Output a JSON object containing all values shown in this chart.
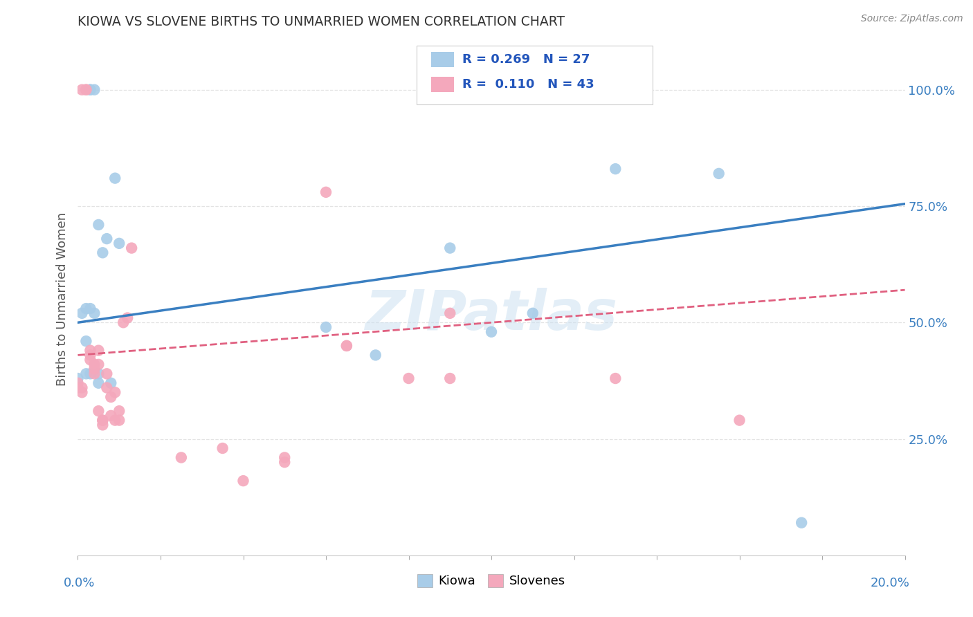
{
  "title": "KIOWA VS SLOVENE BIRTHS TO UNMARRIED WOMEN CORRELATION CHART",
  "source": "Source: ZipAtlas.com",
  "ylabel": "Births to Unmarried Women",
  "ytick_positions": [
    0.25,
    0.5,
    0.75,
    1.0
  ],
  "ytick_labels": [
    "25.0%",
    "50.0%",
    "75.0%",
    "100.0%"
  ],
  "kiowa_R": 0.269,
  "kiowa_N": 27,
  "slovene_R": 0.11,
  "slovene_N": 43,
  "kiowa_color": "#a8cce8",
  "slovene_color": "#f4a8bc",
  "kiowa_line_color": "#3a7fc1",
  "slovene_line_color": "#e06080",
  "background_color": "#ffffff",
  "kiowa_points_x": [
    0.0,
    0.001,
    0.002,
    0.002,
    0.002,
    0.003,
    0.003,
    0.003,
    0.003,
    0.004,
    0.004,
    0.005,
    0.005,
    0.005,
    0.006,
    0.007,
    0.008,
    0.009,
    0.01,
    0.06,
    0.072,
    0.09,
    0.1,
    0.11,
    0.13,
    0.155,
    0.175
  ],
  "kiowa_points_y": [
    0.38,
    0.52,
    0.53,
    0.46,
    0.39,
    0.39,
    0.53,
    1.0,
    1.0,
    1.0,
    0.52,
    0.71,
    0.39,
    0.37,
    0.65,
    0.68,
    0.37,
    0.81,
    0.67,
    0.49,
    0.43,
    0.66,
    0.48,
    0.52,
    0.83,
    0.82,
    0.07
  ],
  "slovene_points_x": [
    0.0,
    0.0,
    0.001,
    0.001,
    0.001,
    0.002,
    0.002,
    0.003,
    0.003,
    0.003,
    0.004,
    0.004,
    0.004,
    0.005,
    0.005,
    0.005,
    0.006,
    0.006,
    0.006,
    0.007,
    0.007,
    0.008,
    0.008,
    0.009,
    0.009,
    0.01,
    0.01,
    0.011,
    0.012,
    0.013,
    0.025,
    0.035,
    0.04,
    0.05,
    0.05,
    0.06,
    0.065,
    0.065,
    0.08,
    0.09,
    0.09,
    0.13,
    0.16
  ],
  "slovene_points_y": [
    0.37,
    0.36,
    0.36,
    0.35,
    1.0,
    1.0,
    1.0,
    0.44,
    0.43,
    0.42,
    0.41,
    0.4,
    0.39,
    0.44,
    0.41,
    0.31,
    0.29,
    0.29,
    0.28,
    0.39,
    0.36,
    0.34,
    0.3,
    0.29,
    0.35,
    0.31,
    0.29,
    0.5,
    0.51,
    0.66,
    0.21,
    0.23,
    0.16,
    0.21,
    0.2,
    0.78,
    0.45,
    0.45,
    0.38,
    0.52,
    0.38,
    0.38,
    0.29
  ],
  "xmin": 0.0,
  "xmax": 0.2,
  "ymin": 0.0,
  "ymax": 1.1,
  "kiowa_line_x": [
    0.0,
    0.2
  ],
  "kiowa_line_y": [
    0.5,
    0.755
  ],
  "slovene_line_x": [
    0.0,
    0.2
  ],
  "slovene_line_y": [
    0.43,
    0.57
  ]
}
